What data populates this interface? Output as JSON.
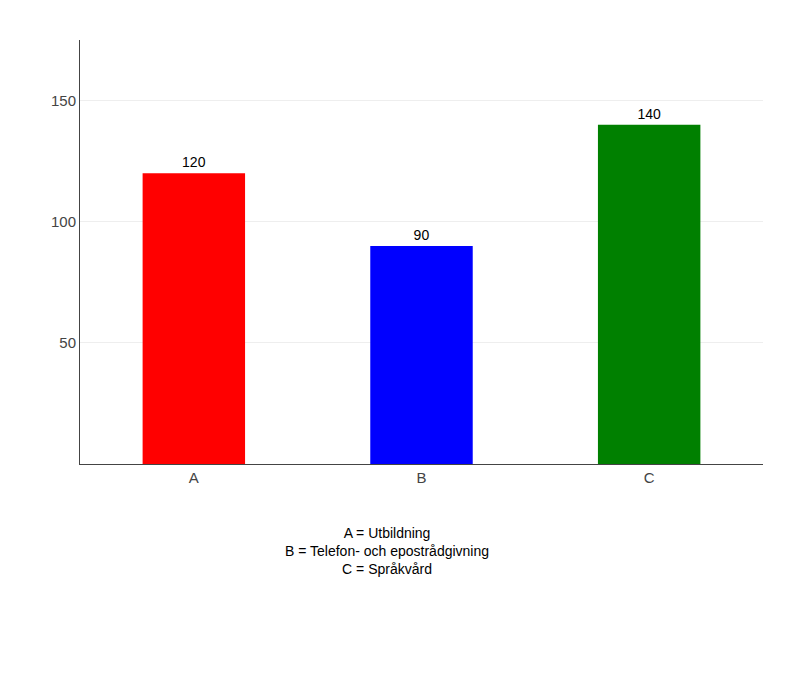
{
  "chart_data": {
    "type": "bar",
    "categories": [
      "A",
      "B",
      "C"
    ],
    "values": [
      120,
      90,
      140
    ],
    "colors": [
      "#ff0000",
      "#0000ff",
      "#008000"
    ],
    "ylim": [
      0,
      175
    ],
    "yticks": [
      50,
      100,
      150
    ],
    "grid": true,
    "data_labels": true,
    "annotations": [
      "A = Utbildning",
      "B = Telefon- och epostrådgivning",
      "C = Språkvård"
    ]
  }
}
